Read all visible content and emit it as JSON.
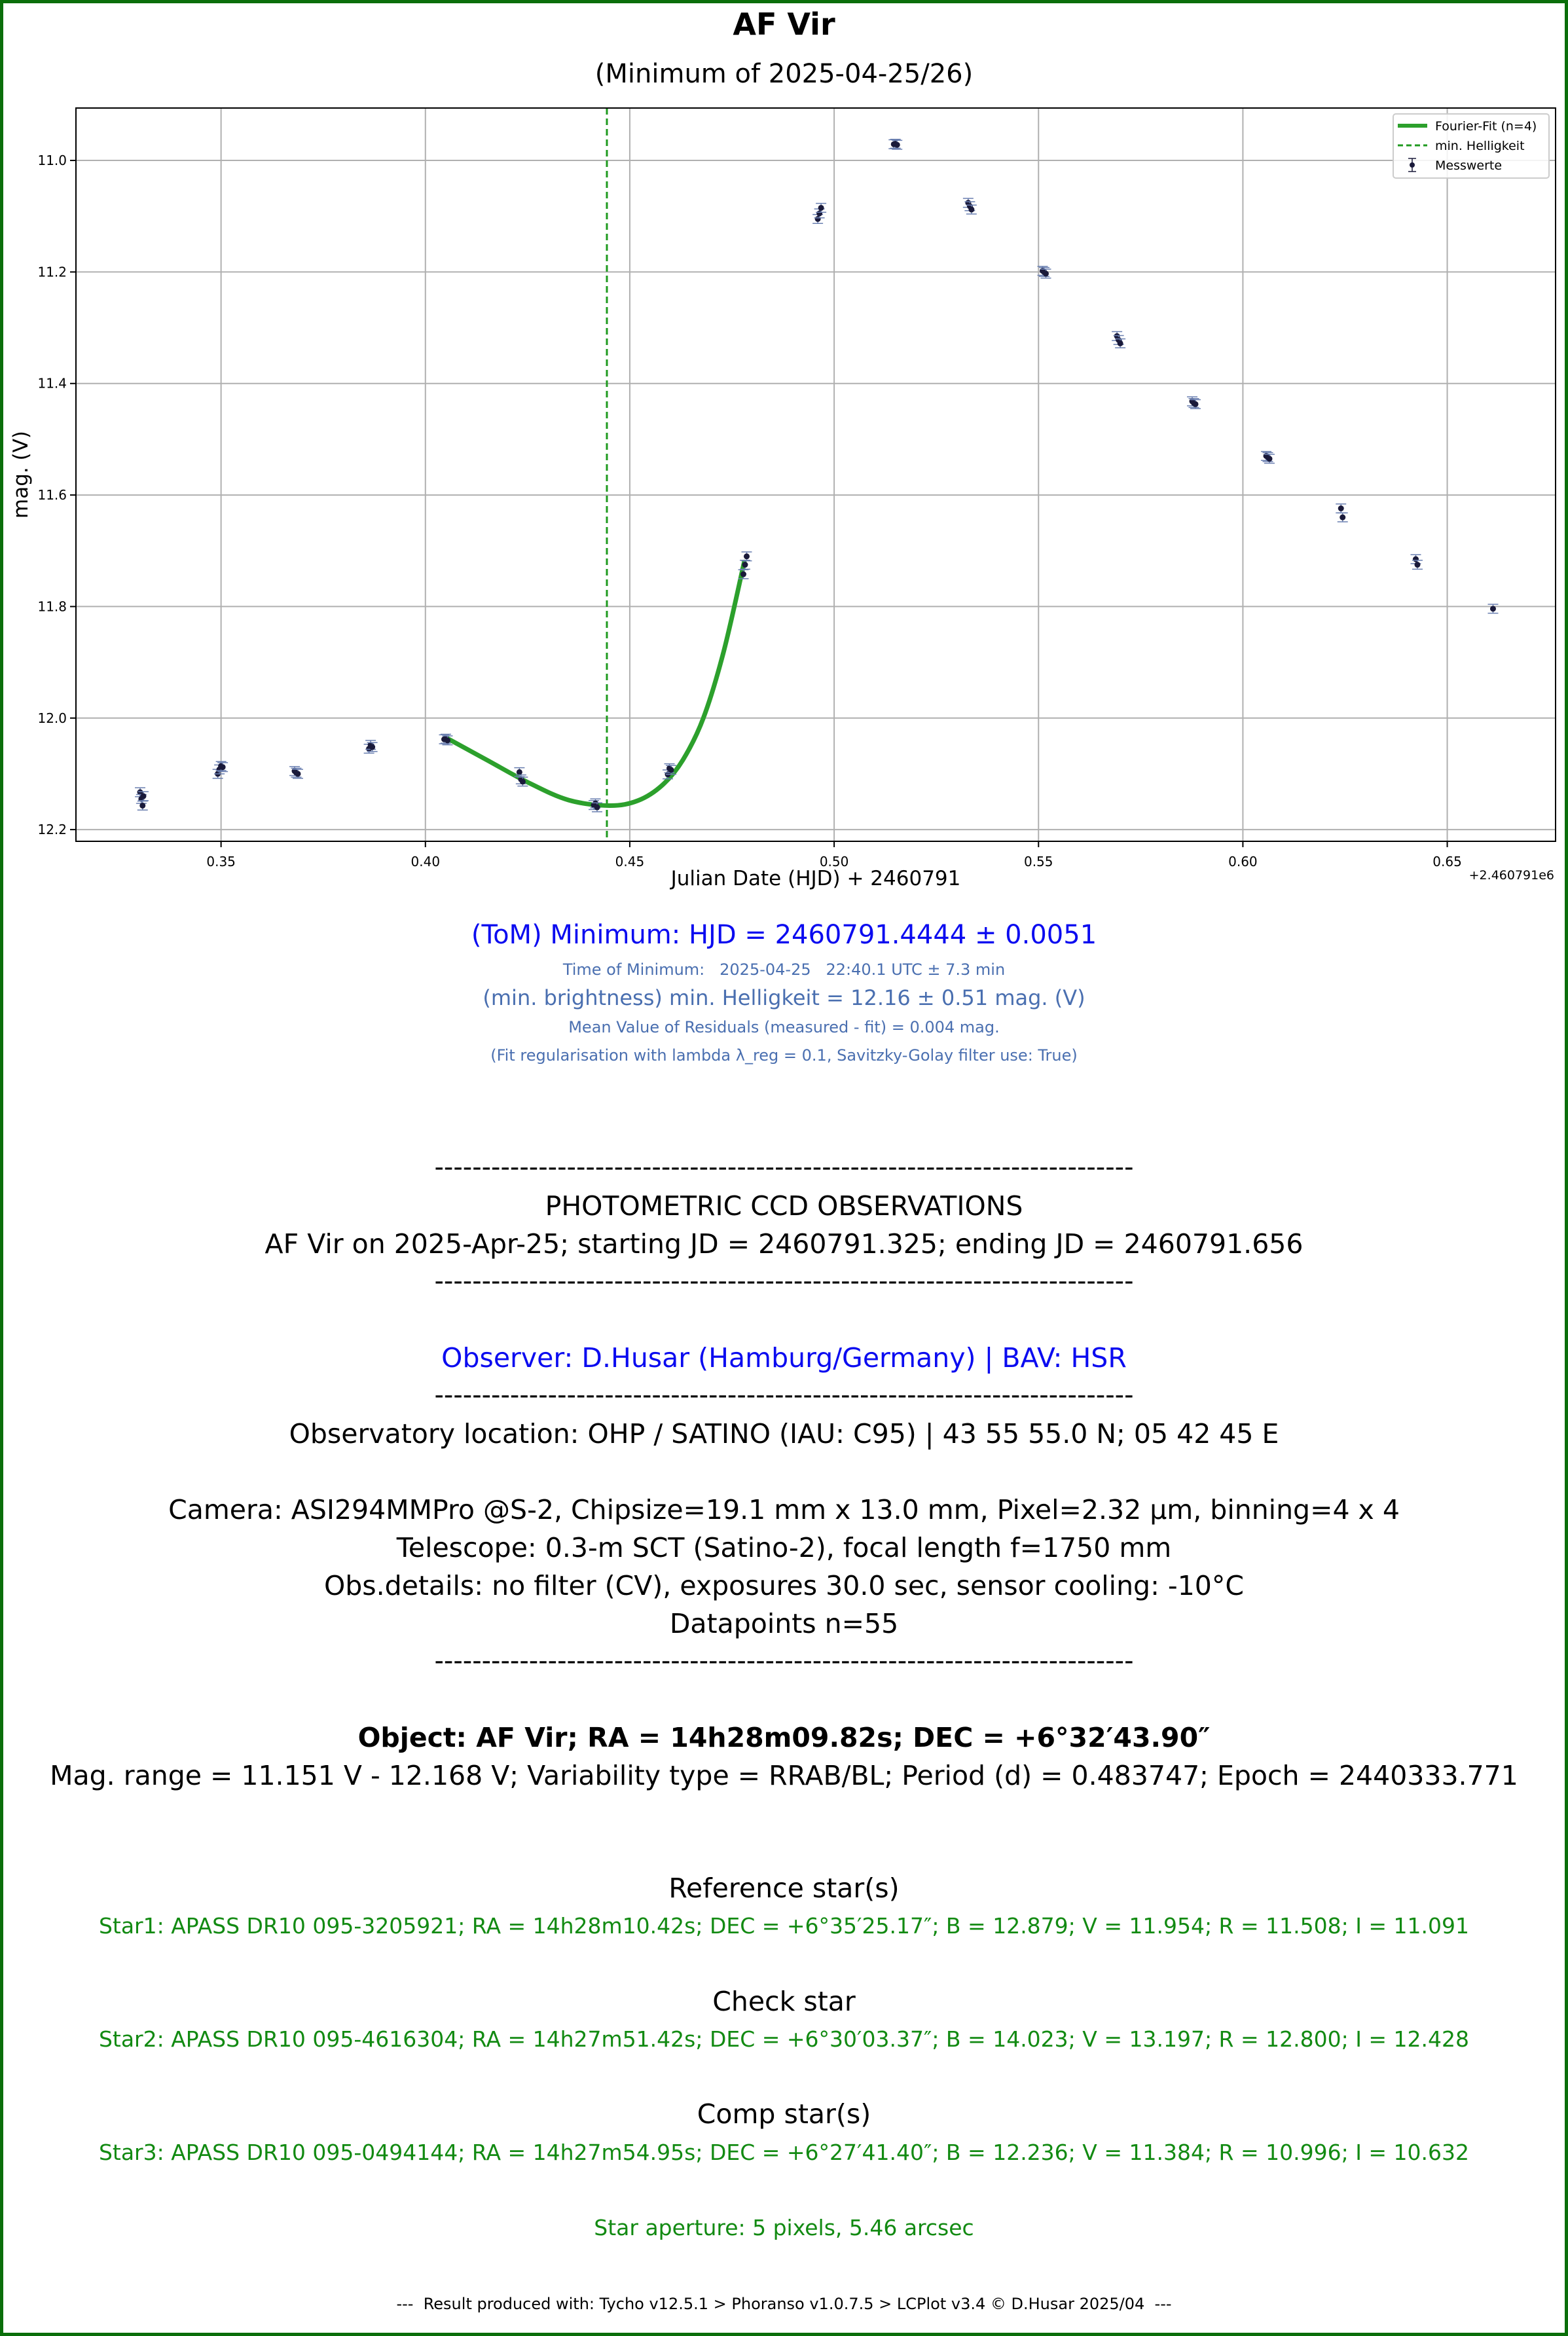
{
  "header": {
    "title": "AF Vir",
    "subtitle": "(Minimum of 2025-04-25/26)"
  },
  "chart_data": {
    "type": "scatter",
    "xlabel": "Julian Date (HJD) + 2460791",
    "ylabel": "mag. (V)",
    "x_offset_label": "+2.460791e6",
    "xlim": [
      0.3145,
      0.6765
    ],
    "ylim": [
      12.221,
      10.906
    ],
    "y_inverted": true,
    "grid": true,
    "legend_placement": "top-right",
    "x_ticks": [
      0.35,
      0.4,
      0.45,
      0.5,
      0.55,
      0.6,
      0.65
    ],
    "x_tick_labels": [
      "0.35",
      "0.40",
      "0.45",
      "0.50",
      "0.55",
      "0.60",
      "0.65"
    ],
    "y_ticks": [
      11.0,
      11.2,
      11.4,
      11.6,
      11.8,
      12.0,
      12.2
    ],
    "y_tick_labels": [
      "11.0",
      "11.2",
      "11.4",
      "11.6",
      "11.8",
      "12.0",
      "12.2"
    ],
    "legend": [
      {
        "label": "Fourier-Fit (n=4)",
        "kind": "line",
        "color": "#2ca02c"
      },
      {
        "label": "min. Helligkeit",
        "kind": "dashed",
        "color": "#1f9a1f"
      },
      {
        "label": "Messwerte",
        "kind": "errorbar",
        "color": "#1a1a3a"
      }
    ],
    "series": [
      {
        "name": "Messwerte",
        "color": "#1a1a3a",
        "error": 0.008,
        "x": [
          0.3302,
          0.3305,
          0.3308,
          0.331,
          0.3492,
          0.3496,
          0.35,
          0.3504,
          0.368,
          0.3684,
          0.3688,
          0.3862,
          0.3866,
          0.387,
          0.4046,
          0.405,
          0.4054,
          0.423,
          0.4234,
          0.4238,
          0.4412,
          0.4416,
          0.442,
          0.4593,
          0.4597,
          0.4601,
          0.4778,
          0.4782,
          0.4786,
          0.496,
          0.4964,
          0.4968,
          0.5146,
          0.515,
          0.5154,
          0.5328,
          0.5332,
          0.5336,
          0.551,
          0.5514,
          0.5518,
          0.5692,
          0.5696,
          0.57,
          0.5876,
          0.588,
          0.5884,
          0.6057,
          0.6061,
          0.6065,
          0.624,
          0.6244,
          0.6423,
          0.6427,
          0.6612
        ],
        "y": [
          12.133,
          12.145,
          12.157,
          12.14,
          12.1,
          12.092,
          12.086,
          12.088,
          12.095,
          12.098,
          12.1,
          12.055,
          12.048,
          12.052,
          12.038,
          12.037,
          12.04,
          12.097,
          12.11,
          12.114,
          12.156,
          12.153,
          12.16,
          12.101,
          12.09,
          12.093,
          11.742,
          11.725,
          11.71,
          11.105,
          11.095,
          11.085,
          10.971,
          10.97,
          10.972,
          11.076,
          11.082,
          11.088,
          11.198,
          11.2,
          11.203,
          11.315,
          11.322,
          11.328,
          11.432,
          11.435,
          11.437,
          11.53,
          11.532,
          11.535,
          11.624,
          11.64,
          11.715,
          11.725,
          11.804
        ]
      },
      {
        "name": "Fourier-Fit (n=4)",
        "color": "#2ca02c",
        "x": [
          0.405,
          0.415,
          0.425,
          0.435,
          0.445,
          0.452,
          0.458,
          0.463,
          0.468,
          0.473,
          0.478
        ],
        "y": [
          12.035,
          12.075,
          12.115,
          12.147,
          12.157,
          12.148,
          12.12,
          12.075,
          12.0,
          11.88,
          11.72
        ]
      }
    ],
    "min_line_x": 0.4444
  },
  "results": {
    "tom": "(ToM) Minimum: HJD = 2460791.4444 ± 0.0051",
    "time_of_min": "Time of Minimum:   2025-04-25   22:40.1 UTC ± 7.3 min",
    "min_brightness": "(min. brightness) min. Helligkeit = 12.16 ± 0.51 mag. (V)",
    "residuals": "Mean Value of Residuals (measured - fit) = 0.004 mag.",
    "fit_reg": "(Fit regularisation with lambda λ_reg = 0.1, Savitzky-Golay filter use: True)"
  },
  "report": {
    "dashes": "--------------------------------------------------------------------------",
    "heading": "PHOTOMETRIC CCD OBSERVATIONS",
    "obs_span": "AF Vir on 2025-Apr-25; starting JD = 2460791.325; ending JD = 2460791.656",
    "observer": "Observer: D.Husar (Hamburg/Germany) | BAV: HSR",
    "location": "Observatory location: OHP / SATINO (IAU: C95) | 43 55 55.0 N; 05 42 45 E",
    "camera": "Camera: ASI294MMPro @S-2, Chipsize=19.1 mm x 13.0 mm, Pixel=2.32 µm, binning=4 x 4",
    "telescope": "Telescope: 0.3-m SCT (Satino-2), focal length f=1750 mm",
    "obs_details": "Obs.details: no filter (CV), exposures 30.0 sec, sensor cooling: -10°C",
    "datapoints": "Datapoints n=55",
    "object": "Object: AF Vir; RA = 14h28m09.82s; DEC = +6°32′43.90″",
    "mag_range": "Mag. range = 11.151 V - 12.168 V; Variability type = RRAB/BL; Period (d) = 0.483747; Epoch = 2440333.771",
    "ref_heading": "Reference star(s)",
    "ref_star": "Star1: APASS DR10 095-3205921; RA = 14h28m10.42s; DEC = +6°35′25.17″; B = 12.879; V = 11.954; R = 11.508; I = 11.091",
    "check_heading": "Check star",
    "check_star": "Star2: APASS DR10 095-4616304; RA = 14h27m51.42s; DEC = +6°30′03.37″; B = 14.023; V = 13.197; R = 12.800; I = 12.428",
    "comp_heading": "Comp star(s)",
    "comp_star": "Star3: APASS DR10 095-0494144; RA = 14h27m54.95s; DEC = +6°27′41.40″; B = 12.236; V = 11.384; R = 10.996; I = 10.632",
    "aperture": "Star aperture: 5 pixels, 5.46 arcsec",
    "footer": "---  Result produced with: Tycho v12.5.1 > Phoranso v1.0.7.5 > LCPlot v3.4 © D.Husar 2025/04  ---"
  },
  "colors": {
    "frame": "#0a6e0a",
    "fit": "#2ca02c",
    "min_line": "#1f9a1f",
    "points": "#1a1a3a",
    "blue_text": "#0b0bf0",
    "muted_blue_text": "#4a6fb0",
    "green_text": "#128a12"
  }
}
